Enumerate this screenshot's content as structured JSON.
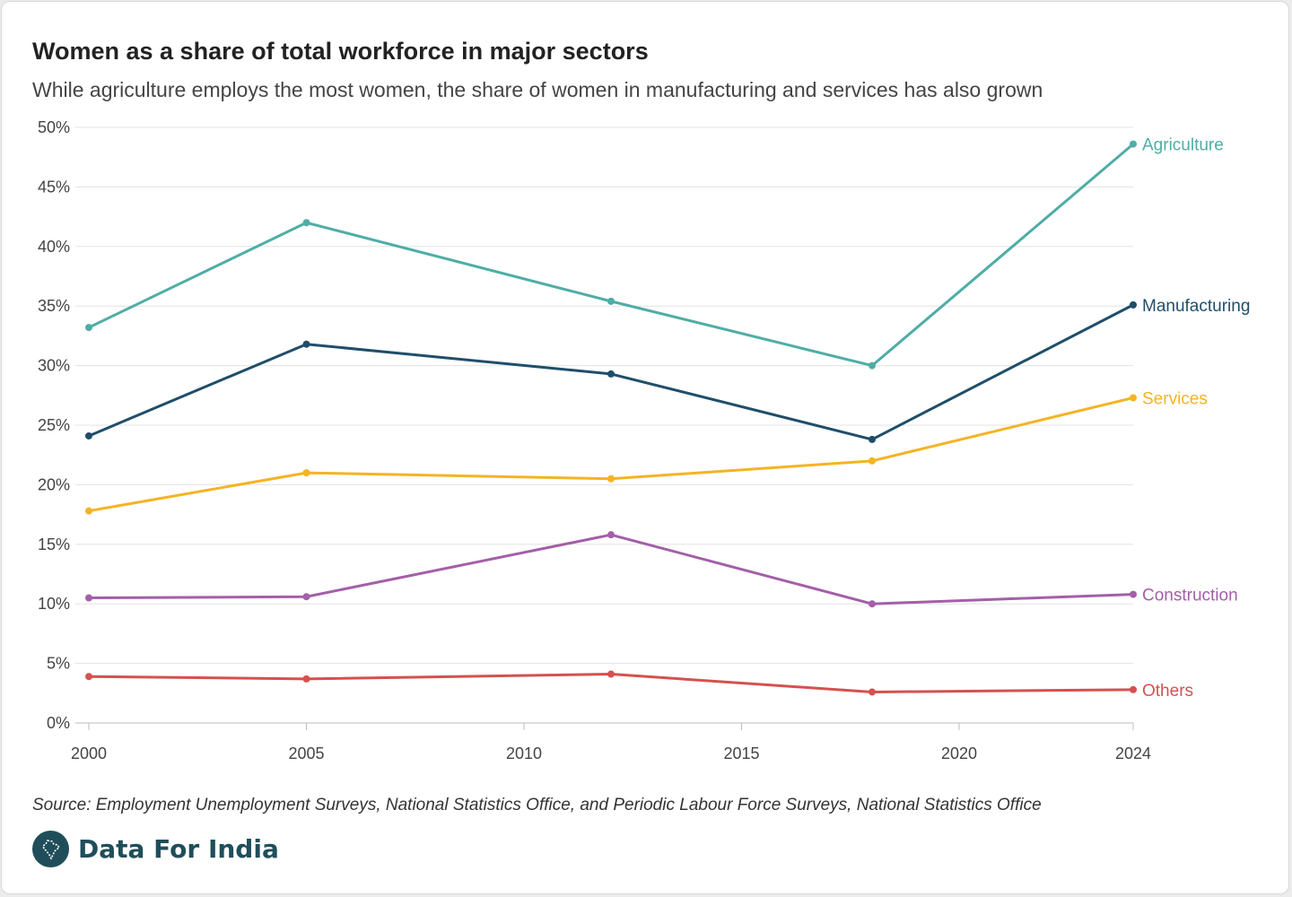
{
  "header": {
    "title": "Women as a share of total workforce in major sectors",
    "subtitle": "While agriculture employs the most women, the share of women in manufacturing and services has also grown"
  },
  "footer": {
    "source": "Source: Employment Unemployment Surveys, National Statistics Office, and Periodic Labour Force Surveys, National Statistics Office",
    "brand": "Data For India",
    "brand_icon": "india-map-icon",
    "brand_color": "#1f4e5a"
  },
  "chart_data": {
    "type": "line",
    "title": "Women as a share of total workforce in major sectors",
    "subtitle": "While agriculture employs the most women, the share of women in manufacturing and services has also grown",
    "xlabel": "",
    "ylabel": "",
    "xlim": [
      2000,
      2024
    ],
    "ylim": [
      0,
      50
    ],
    "x_ticks": [
      2000,
      2005,
      2010,
      2015,
      2020,
      2024
    ],
    "y_ticks": [
      0,
      5,
      10,
      15,
      20,
      25,
      30,
      35,
      40,
      45,
      50
    ],
    "y_tick_labels": [
      "0%",
      "5%",
      "10%",
      "15%",
      "20%",
      "25%",
      "30%",
      "35%",
      "40%",
      "45%",
      "50%"
    ],
    "grid": "horizontal",
    "legend": "direct labels at line ends",
    "series": [
      {
        "name": "Agriculture",
        "color": "#4fada6",
        "x": [
          2000,
          2005,
          2012,
          2018,
          2024
        ],
        "y": [
          33.2,
          42.0,
          35.4,
          30.0,
          48.6
        ]
      },
      {
        "name": "Manufacturing",
        "color": "#1f4e6a",
        "x": [
          2000,
          2005,
          2012,
          2018,
          2024
        ],
        "y": [
          24.1,
          31.8,
          29.3,
          23.8,
          35.1
        ]
      },
      {
        "name": "Services",
        "color": "#f5b324",
        "x": [
          2000,
          2005,
          2012,
          2018,
          2024
        ],
        "y": [
          17.8,
          21.0,
          20.5,
          22.0,
          27.3
        ]
      },
      {
        "name": "Construction",
        "color": "#a35fa8",
        "x": [
          2000,
          2005,
          2012,
          2018,
          2024
        ],
        "y": [
          10.5,
          10.6,
          15.8,
          10.0,
          10.8
        ]
      },
      {
        "name": "Others",
        "color": "#d4514f",
        "x": [
          2000,
          2005,
          2012,
          2018,
          2024
        ],
        "y": [
          3.9,
          3.7,
          4.1,
          2.6,
          2.8
        ]
      }
    ]
  }
}
